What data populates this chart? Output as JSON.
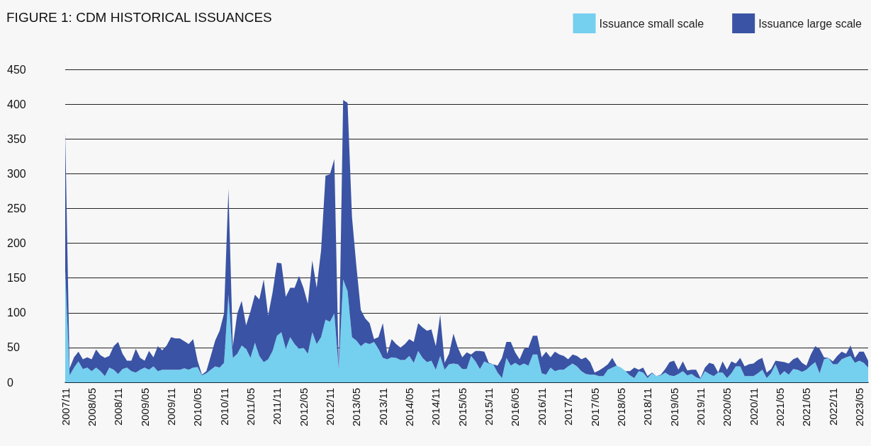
{
  "chart_data": {
    "type": "area",
    "title": "FIGURE 1: CDM HISTORICAL ISSUANCES",
    "stacked": true,
    "legend": "top right",
    "grid": "y",
    "marker": "none",
    "ylim": [
      0,
      450
    ],
    "yticks": [
      0,
      50,
      100,
      150,
      200,
      250,
      300,
      350,
      400,
      450
    ],
    "categories": [
      "2007/11",
      null,
      null,
      null,
      null,
      null,
      "2008/05",
      null,
      null,
      null,
      null,
      null,
      "2008/11",
      null,
      null,
      null,
      null,
      null,
      "2009/05",
      null,
      null,
      null,
      null,
      null,
      "2009/11",
      null,
      null,
      null,
      null,
      null,
      "2010/05",
      null,
      null,
      null,
      null,
      null,
      "2010/11",
      null,
      null,
      null,
      null,
      null,
      "2011/05",
      null,
      null,
      null,
      null,
      null,
      "2011/11",
      null,
      null,
      null,
      null,
      null,
      "2012/05",
      null,
      null,
      null,
      null,
      null,
      "2012/11",
      null,
      null,
      null,
      null,
      null,
      "2013/05",
      null,
      null,
      null,
      null,
      null,
      "2013/11",
      null,
      null,
      null,
      null,
      null,
      "2014/05",
      null,
      null,
      null,
      null,
      null,
      "2014/11",
      null,
      null,
      null,
      null,
      null,
      "2015/05",
      null,
      null,
      null,
      null,
      null,
      "2015/11",
      null,
      null,
      null,
      null,
      null,
      "2016/05",
      null,
      null,
      null,
      null,
      null,
      "2016/11",
      null,
      null,
      null,
      null,
      null,
      "2017/11",
      null,
      null,
      null,
      null,
      null,
      "2017/05",
      null,
      null,
      null,
      null,
      null,
      "2018/05",
      null,
      null,
      null,
      null,
      null,
      "2018/11",
      null,
      null,
      null,
      null,
      null,
      "2019/05",
      null,
      null,
      null,
      null,
      null,
      "2019/11",
      null,
      null,
      null,
      null,
      null,
      "2020/05",
      null,
      null,
      null,
      null,
      null,
      "2020/11",
      null,
      null,
      null,
      null,
      null,
      "2021/05",
      null,
      null,
      null,
      null,
      null,
      "2021/05",
      null,
      null,
      null,
      null,
      null,
      "2022/11",
      null,
      null,
      null,
      null,
      null,
      "2023/05",
      null,
      null
    ],
    "series": [
      {
        "name": "Issuance small scale",
        "color": "#75cfef",
        "values": [
          160,
          10,
          21,
          30,
          19,
          21,
          16,
          21,
          16,
          9,
          21,
          18,
          12,
          19,
          21,
          16,
          14,
          18,
          21,
          18,
          23,
          16,
          18,
          18,
          18,
          18,
          18,
          20,
          18,
          21,
          22,
          10,
          13,
          18,
          23,
          21,
          28,
          126,
          35,
          41,
          53,
          48,
          35,
          57,
          38,
          29,
          33,
          45,
          67,
          72,
          48,
          65,
          55,
          48,
          50,
          41,
          72,
          55,
          65,
          90,
          87,
          99,
          18,
          148,
          131,
          65,
          60,
          52,
          57,
          55,
          58,
          48,
          35,
          33,
          36,
          35,
          32,
          32,
          38,
          28,
          45,
          35,
          29,
          31,
          18,
          38,
          18,
          26,
          27,
          26,
          19,
          19,
          38,
          30,
          19,
          30,
          27,
          26,
          14,
          6,
          35,
          24,
          28,
          24,
          27,
          24,
          40,
          40,
          13,
          11,
          21,
          16,
          18,
          18,
          23,
          27,
          23,
          16,
          12,
          11,
          11,
          9,
          9,
          18,
          21,
          24,
          21,
          16,
          10,
          6,
          16,
          14,
          6,
          13,
          9,
          10,
          14,
          10,
          9,
          12,
          16,
          10,
          12,
          7,
          5,
          16,
          12,
          9,
          14,
          14,
          6,
          13,
          23,
          23,
          9,
          9,
          9,
          13,
          18,
          6,
          13,
          26,
          10,
          16,
          11,
          19,
          18,
          15,
          18,
          24,
          29,
          13,
          33,
          35,
          26,
          26,
          33,
          36,
          38,
          28,
          31,
          28,
          21
        ]
      },
      {
        "name": "Issuance large scale",
        "color": "#3a53a4",
        "values": [
          200,
          10,
          15,
          14,
          14,
          15,
          17,
          26,
          23,
          26,
          17,
          34,
          46,
          22,
          10,
          15,
          34,
          17,
          10,
          27,
          13,
          36,
          28,
          35,
          47,
          45,
          45,
          39,
          37,
          41,
          9,
          1,
          3,
          20,
          37,
          53,
          71,
          152,
          17,
          58,
          64,
          34,
          67,
          69,
          81,
          119,
          63,
          84,
          105,
          99,
          75,
          71,
          81,
          105,
          86,
          72,
          103,
          81,
          125,
          207,
          212,
          222,
          1,
          258,
          271,
          173,
          107,
          52,
          35,
          30,
          4,
          17,
          50,
          8,
          26,
          20,
          18,
          23,
          24,
          30,
          40,
          44,
          45,
          45,
          34,
          59,
          10,
          15,
          43,
          24,
          17,
          24,
          2,
          15,
          26,
          14,
          1,
          0,
          10,
          29,
          23,
          34,
          15,
          9,
          21,
          26,
          27,
          27,
          23,
          33,
          15,
          28,
          22,
          20,
          10,
          13,
          15,
          17,
          24,
          18,
          3,
          8,
          12,
          8,
          14,
          0,
          0,
          0,
          6,
          15,
          2,
          7,
          3,
          1,
          0,
          1,
          5,
          19,
          22,
          6,
          14,
          7,
          6,
          11,
          1,
          5,
          16,
          17,
          0,
          16,
          12,
          17,
          4,
          12,
          14,
          17,
          18,
          19,
          17,
          8,
          6,
          5,
          20,
          13,
          16,
          14,
          18,
          13,
          6,
          16,
          23,
          35,
          3,
          0,
          4,
          12,
          11,
          5,
          15,
          7,
          13,
          16,
          10
        ]
      }
    ]
  }
}
